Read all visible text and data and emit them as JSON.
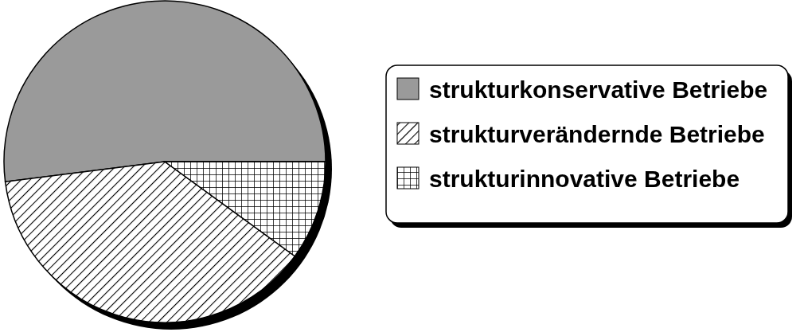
{
  "chart_data": {
    "type": "pie",
    "categories": [
      "strukturkonservative Betriebe",
      "strukturverändernde Betriebe",
      "strukturinnovative Betriebe"
    ],
    "values": [
      52,
      38,
      10
    ],
    "colors": [
      "#9a9a9a",
      "#000000",
      "#000000"
    ],
    "legend": "right"
  }
}
